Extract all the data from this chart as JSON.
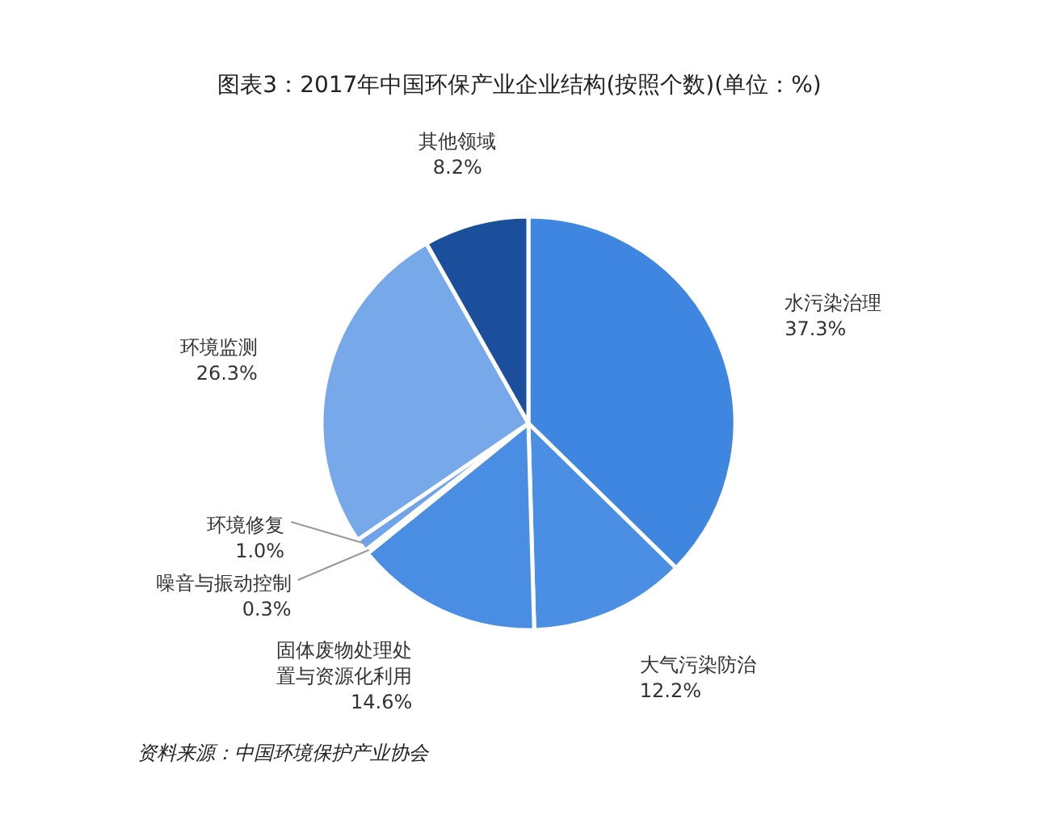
{
  "chart_data": {
    "type": "pie",
    "title": "图表3：2017年中国环保产业企业结构(按照个数)(单位：%)",
    "categories": [
      "水污染治理",
      "大气污染防治",
      "固体废物处理处置与资源化利用",
      "噪音与振动控制",
      "环境修复",
      "环境监测",
      "其他领域"
    ],
    "values": [
      37.3,
      12.2,
      14.6,
      0.3,
      1.0,
      26.3,
      8.2
    ],
    "colors": [
      "#3f86e0",
      "#4a8fe4",
      "#4a8ee4",
      "#6fa3ea",
      "#6fa3ea",
      "#76a8ea",
      "#1b4f9b"
    ],
    "value_labels": [
      "37.3%",
      "12.2%",
      "14.6%",
      "0.3%",
      "1.0%",
      "26.3%",
      "8.2%"
    ],
    "annotations": [
      "资料来源：中国环境保护产业协会"
    ]
  }
}
